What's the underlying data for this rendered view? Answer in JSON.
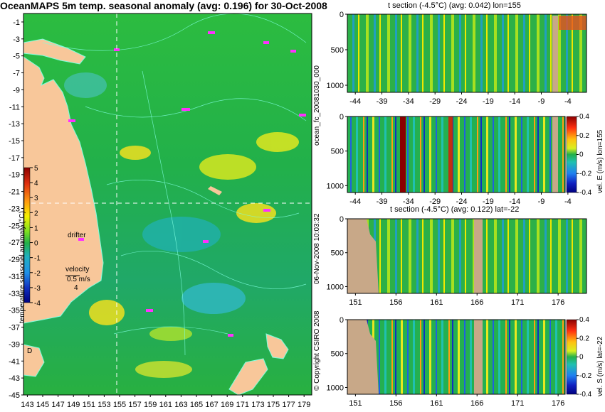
{
  "main_title": "OceanMAPS 5m temp. seasonal anomaly (avg: 0.196) for 30-Oct-2008",
  "vertical_labels": {
    "forecast_id": "ocean_fc_20081030_000",
    "run_time": "06-Nov-2008 10:03:32",
    "copyright": "© Copyright CSIRO 2008"
  },
  "map_annotations": {
    "drifter": "drifter",
    "velocity": "velocity",
    "velocity_scale": "0.5 m/s",
    "velocity_count": "4",
    "marker": "D"
  },
  "colors": {
    "land": "#f8c79a",
    "ocean_mid": "#22b04a",
    "contour": "#7fffe0",
    "drifter_marker": "#ff30ff",
    "section_land": "#c8a888",
    "crosshair": "#ffffff"
  },
  "chart_data": [
    {
      "type": "heatmap",
      "title": "OceanMAPS 5m temp. seasonal anomaly (avg: 0.196) for 30-Oct-2008",
      "x_ticks": [
        143,
        145,
        147,
        149,
        151,
        153,
        155,
        157,
        159,
        161,
        163,
        165,
        167,
        169,
        171,
        173,
        175,
        177,
        179
      ],
      "x_tick_labels": [
        "143",
        "145",
        "147",
        "149",
        "151",
        "153",
        "155",
        "157",
        "159",
        "161",
        "163",
        "165",
        "167",
        "169",
        "171",
        "173",
        "175",
        "177",
        "179"
      ],
      "y_ticks": [
        -1,
        -3,
        -5,
        -7,
        -9,
        -11,
        -13,
        -15,
        -17,
        -19,
        -21,
        -23,
        -25,
        -27,
        -29,
        -31,
        -33,
        -35,
        -37,
        -39,
        -41,
        -43,
        -45
      ],
      "xlim": [
        142.5,
        180
      ],
      "ylim": [
        -45,
        0
      ],
      "crosshair": {
        "lon": 155,
        "lat": -22
      },
      "colorbar": {
        "label": "temperature seasonal anomaly (°C)",
        "ticks": [
          5,
          4,
          3,
          2,
          1,
          0,
          -1,
          -2,
          -3,
          -4
        ],
        "range": [
          -4,
          5
        ]
      }
    },
    {
      "type": "heatmap",
      "title": "t section (-4.5°C) (avg: 0.042) lon=155",
      "x_tick_labels": [
        "-44",
        "-39",
        "-34",
        "-29",
        "-24",
        "-19",
        "-14",
        "-9",
        "-4"
      ],
      "x_ticks": [
        -44,
        -39,
        -34,
        -29,
        -24,
        -19,
        -14,
        -9,
        -4
      ],
      "y_tick_labels": [
        "0",
        "500",
        "1000"
      ],
      "xlim": [
        -45.5,
        -0.5
      ],
      "ylim": [
        1100,
        0
      ]
    },
    {
      "type": "heatmap",
      "x_tick_labels": [
        "-44",
        "-39",
        "-34",
        "-29",
        "-24",
        "-19",
        "-14",
        "-9",
        "-4"
      ],
      "x_ticks": [
        -44,
        -39,
        -34,
        -29,
        -24,
        -19,
        -14,
        -9,
        -4
      ],
      "y_tick_labels": [
        "0",
        "500",
        "1000"
      ],
      "xlim": [
        -45.5,
        -0.5
      ],
      "ylim": [
        1100,
        0
      ],
      "colorbar": {
        "label": "vel. E (m/s) lon=155",
        "ticks": [
          "0.4",
          "0.2",
          "0",
          "-0.2",
          "-0.4"
        ],
        "range": [
          -0.4,
          0.4
        ]
      }
    },
    {
      "type": "heatmap",
      "title": "t section (-4.5°C) (avg: 0.122) lat=-22",
      "x_tick_labels": [
        "151",
        "156",
        "161",
        "166",
        "171",
        "176"
      ],
      "x_ticks": [
        151,
        156,
        161,
        166,
        171,
        176
      ],
      "y_tick_labels": [
        "0",
        "500",
        "1000"
      ],
      "xlim": [
        150,
        179.5
      ],
      "ylim": [
        1100,
        0
      ]
    },
    {
      "type": "heatmap",
      "x_tick_labels": [
        "151",
        "156",
        "161",
        "166",
        "171",
        "176"
      ],
      "x_ticks": [
        151,
        156,
        161,
        166,
        171,
        176
      ],
      "y_tick_labels": [
        "0",
        "500",
        "1000"
      ],
      "xlim": [
        150,
        179.5
      ],
      "ylim": [
        1100,
        0
      ],
      "colorbar": {
        "label": "vel. S (m/s) lat=-22",
        "ticks": [
          "0.4",
          "0.2",
          "0",
          "-0.2",
          "-0.4"
        ],
        "range": [
          -0.4,
          0.4
        ]
      }
    }
  ]
}
